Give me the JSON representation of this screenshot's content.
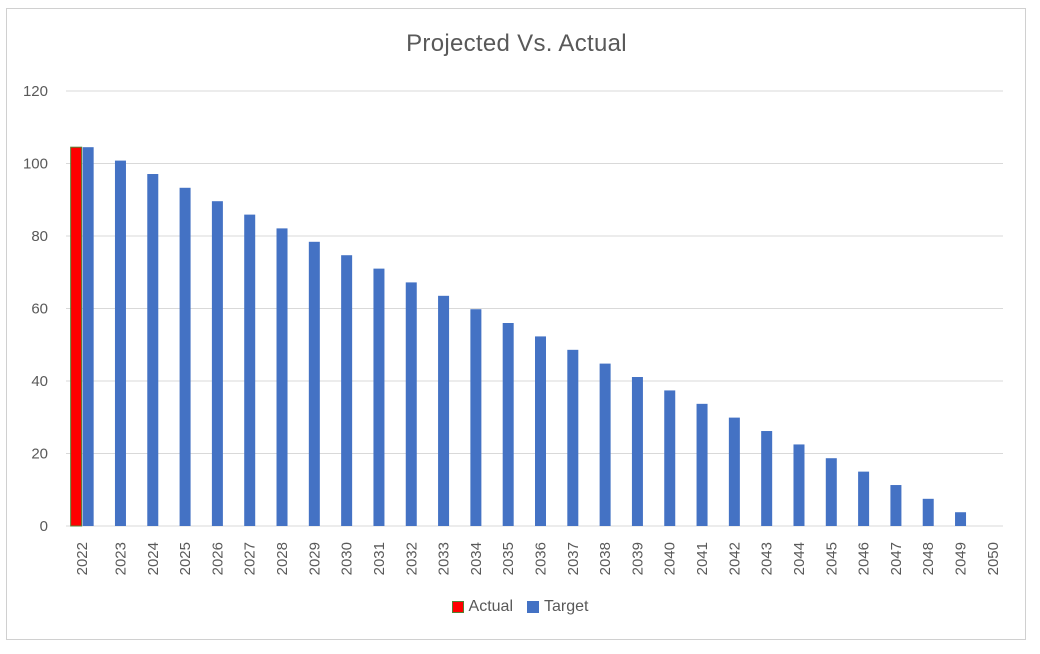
{
  "chart_data": {
    "type": "bar",
    "title": "Projected Vs. Actual",
    "xlabel": "",
    "ylabel": "",
    "ylim": [
      0,
      120
    ],
    "yticks": [
      0,
      20,
      40,
      60,
      80,
      100,
      120
    ],
    "grid": true,
    "legend_position": "bottom",
    "categories": [
      "2022",
      "2023",
      "2024",
      "2025",
      "2026",
      "2027",
      "2028",
      "2029",
      "2030",
      "2031",
      "2032",
      "2033",
      "2034",
      "2035",
      "2036",
      "2037",
      "2038",
      "2039",
      "2040",
      "2041",
      "2042",
      "2043",
      "2044",
      "2045",
      "2046",
      "2047",
      "2048",
      "2049",
      "2050"
    ],
    "series": [
      {
        "name": "Actual",
        "color": "#ff0000",
        "border_color": "#548235",
        "values": [
          104.5,
          null,
          null,
          null,
          null,
          null,
          null,
          null,
          null,
          null,
          null,
          null,
          null,
          null,
          null,
          null,
          null,
          null,
          null,
          null,
          null,
          null,
          null,
          null,
          null,
          null,
          null,
          null,
          null
        ]
      },
      {
        "name": "Target",
        "color": "#4472c4",
        "values": [
          104.5,
          100.8,
          97.1,
          93.3,
          89.6,
          85.9,
          82.1,
          78.4,
          74.7,
          71.0,
          67.2,
          63.5,
          59.8,
          56.0,
          52.3,
          48.6,
          44.8,
          41.1,
          37.4,
          33.7,
          29.9,
          26.2,
          22.5,
          18.7,
          15.0,
          11.3,
          7.5,
          3.8,
          0
        ]
      }
    ]
  }
}
